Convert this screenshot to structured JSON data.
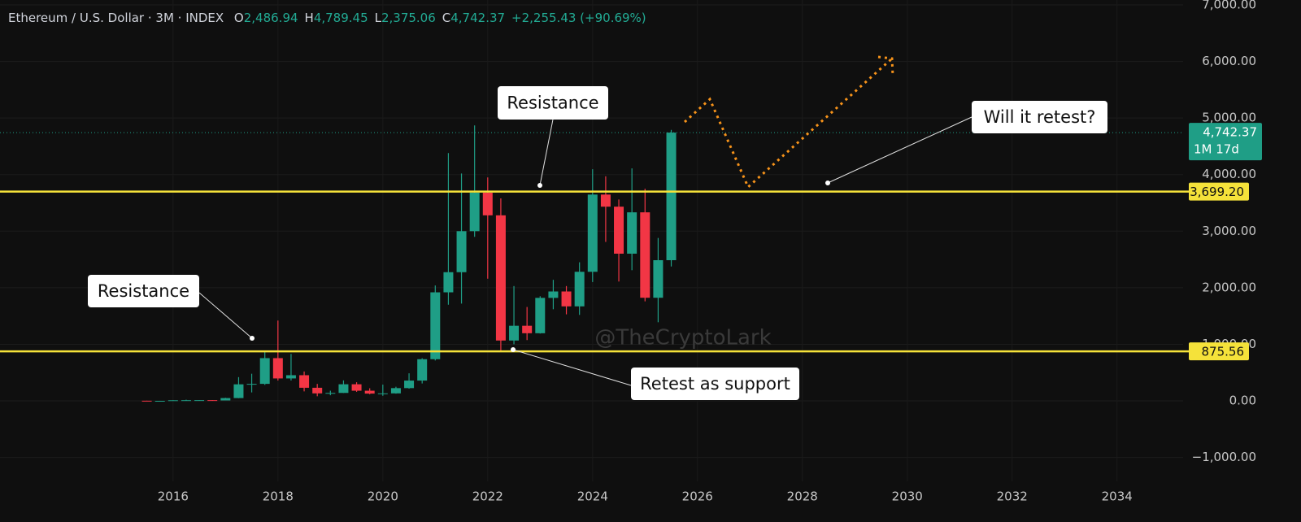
{
  "chart_data": {
    "type": "candlestick",
    "symbol": "Ethereum / U.S. Dollar · 3M · INDEX",
    "ohlc_legend": [
      {
        "label": "O",
        "value": "2,486.94"
      },
      {
        "label": "H",
        "value": "4,789.45"
      },
      {
        "label": "L",
        "value": "2,375.06"
      },
      {
        "label": "C",
        "value": "4,742.37"
      }
    ],
    "change": "+2,255.43 (+90.69%)",
    "x": [
      2015.5,
      2015.75,
      2016,
      2016.25,
      2016.5,
      2016.75,
      2017,
      2017.25,
      2017.5,
      2017.75,
      2018,
      2018.25,
      2018.5,
      2018.75,
      2019,
      2019.25,
      2019.5,
      2019.75,
      2020,
      2020.25,
      2020.5,
      2020.75,
      2021,
      2021.25,
      2021.5,
      2021.75,
      2022,
      2022.25,
      2022.5,
      2022.75,
      2023,
      2023.25,
      2023.5,
      2023.75,
      2024,
      2024.25,
      2024.5,
      2024.75,
      2025,
      2025.25,
      2025.5
    ],
    "open": [
      2.77,
      0.9,
      0.93,
      11.4,
      12.4,
      13.2,
      8,
      50,
      293,
      301,
      756,
      397,
      454,
      232,
      133,
      141,
      294,
      180,
      129,
      133,
      226,
      359,
      737,
      1919,
      2275,
      3000,
      3680,
      3280,
      1067,
      1328,
      1196,
      1821,
      1934,
      1671,
      2282,
      3647,
      3433,
      2602,
      3333,
      1823,
      2486.94
    ],
    "high": [
      3,
      1.3,
      12,
      21,
      14.5,
      13.5,
      55,
      420,
      480,
      880,
      1420,
      830,
      520,
      300,
      180,
      362,
      330,
      223,
      288,
      250,
      488,
      755,
      2040,
      4380,
      4020,
      4870,
      3950,
      3580,
      2030,
      1660,
      1850,
      2140,
      2030,
      2450,
      4095,
      3970,
      3560,
      4110,
      3750,
      2880,
      4789.45
    ],
    "low": [
      0.42,
      0.4,
      0.9,
      9.3,
      10.5,
      6.9,
      8,
      48,
      150,
      283,
      360,
      360,
      168,
      82,
      100,
      140,
      160,
      117,
      90,
      128,
      216,
      308,
      715,
      1700,
      1720,
      2900,
      2160,
      880,
      1000,
      1075,
      1190,
      1620,
      1530,
      1520,
      2100,
      2810,
      2110,
      2310,
      1760,
      1390,
      2375.06
    ],
    "close": [
      0.9,
      0.93,
      11.4,
      12.4,
      13.2,
      8,
      50,
      293,
      301,
      756,
      397,
      454,
      232,
      133,
      141,
      294,
      180,
      129,
      133,
      226,
      359,
      737,
      1919,
      2275,
      3000,
      3680,
      3280,
      1067,
      1328,
      1196,
      1821,
      1934,
      1671,
      2282,
      3647,
      3433,
      2602,
      3333,
      1823,
      2486.94,
      4742.37
    ],
    "up_color": "#1f9e86",
    "down_color": "#f23645",
    "xlim": [
      2012.7,
      2035.26
    ],
    "xticks": [
      2016,
      2018,
      2020,
      2022,
      2024,
      2026,
      2028,
      2030,
      2032,
      2034
    ],
    "ylim": [
      -1422,
      7086
    ],
    "yticks": [
      {
        "value": -1000,
        "label": "−1,000.00"
      },
      {
        "value": 0,
        "label": "0.00"
      },
      {
        "value": 1000,
        "label": "1,000.00"
      },
      {
        "value": 2000,
        "label": "2,000.00"
      },
      {
        "value": 3000,
        "label": "3,000.00"
      },
      {
        "value": 4000,
        "label": "4,000.00"
      },
      {
        "value": 5000,
        "label": "5,000.00"
      },
      {
        "value": 6000,
        "label": "6,000.00"
      },
      {
        "value": 7000,
        "label": "7,000.00"
      }
    ],
    "grid": true,
    "levels": [
      {
        "value": 3699.2,
        "label": "3,699.20",
        "color": "#f5e23a"
      },
      {
        "value": 875.56,
        "label": "875.56",
        "color": "#f5e23a"
      }
    ],
    "last_price": {
      "value": 4742.37,
      "label": "4,742.37",
      "countdown": "1M 17d",
      "color": "#1f9e86"
    },
    "annotations": [
      "Resistance",
      "Resistance",
      "Retest as support",
      "Will it retest?"
    ],
    "watermark": "@TheCryptoLark"
  }
}
